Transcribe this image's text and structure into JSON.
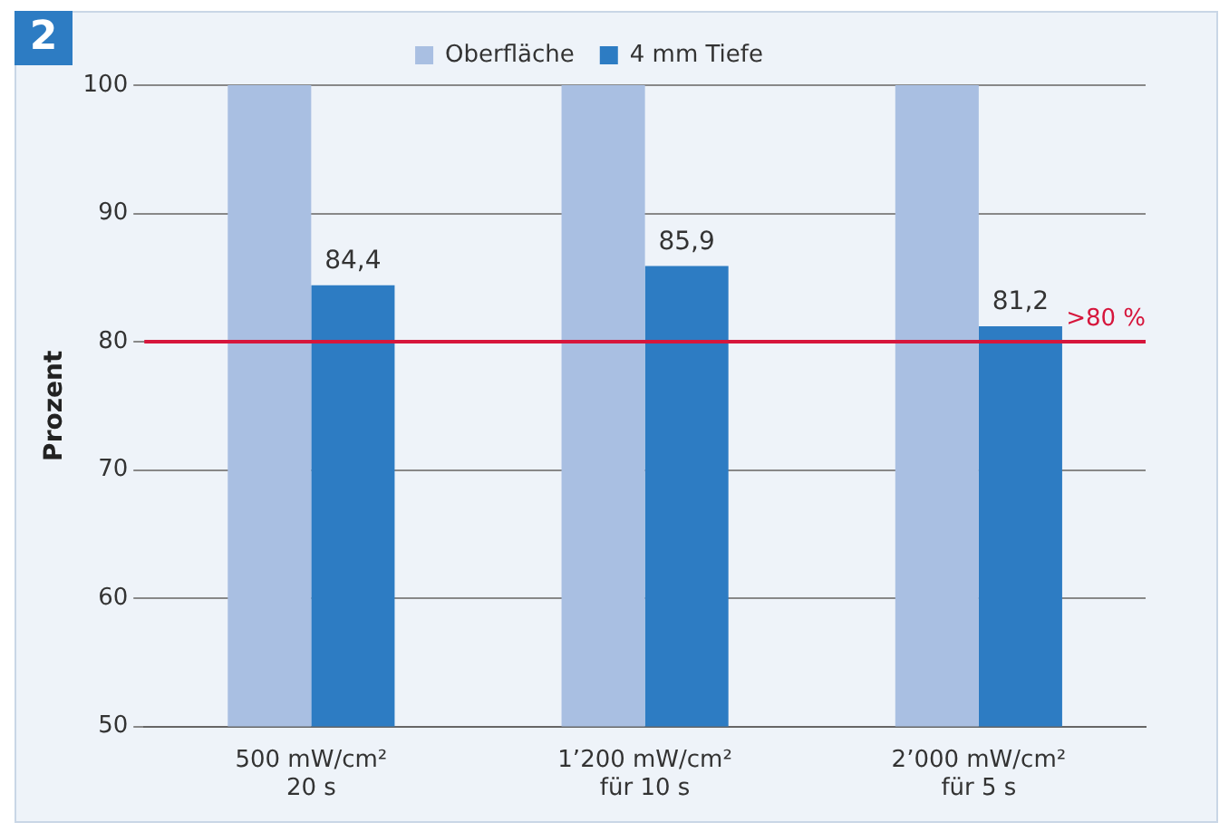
{
  "chart_data": {
    "type": "bar",
    "ylabel": "Prozent",
    "categories": [
      "500 mW/cm²\n20 s",
      "1’200 mW/cm²\nfür 10 s",
      "2’000 mW/cm²\nfür 5 s"
    ],
    "series": [
      {
        "name": "Oberfläche",
        "color": "#a9bfe2",
        "values": [
          100,
          100,
          100
        ]
      },
      {
        "name": "4 mm Tiefe",
        "color": "#2d7cc3",
        "values": [
          84.4,
          85.9,
          81.2
        ],
        "value_labels": [
          "84,4",
          "85,9",
          "81,2"
        ]
      }
    ],
    "ylim": [
      50,
      100
    ],
    "yticks": [
      50,
      60,
      70,
      80,
      90,
      100
    ],
    "grid": "y",
    "legend": "top",
    "ref_lines": [
      {
        "axis": "y",
        "value": 80,
        "label": ">80 %",
        "color": "#d6163c"
      }
    ],
    "annotations": [
      "2"
    ]
  }
}
